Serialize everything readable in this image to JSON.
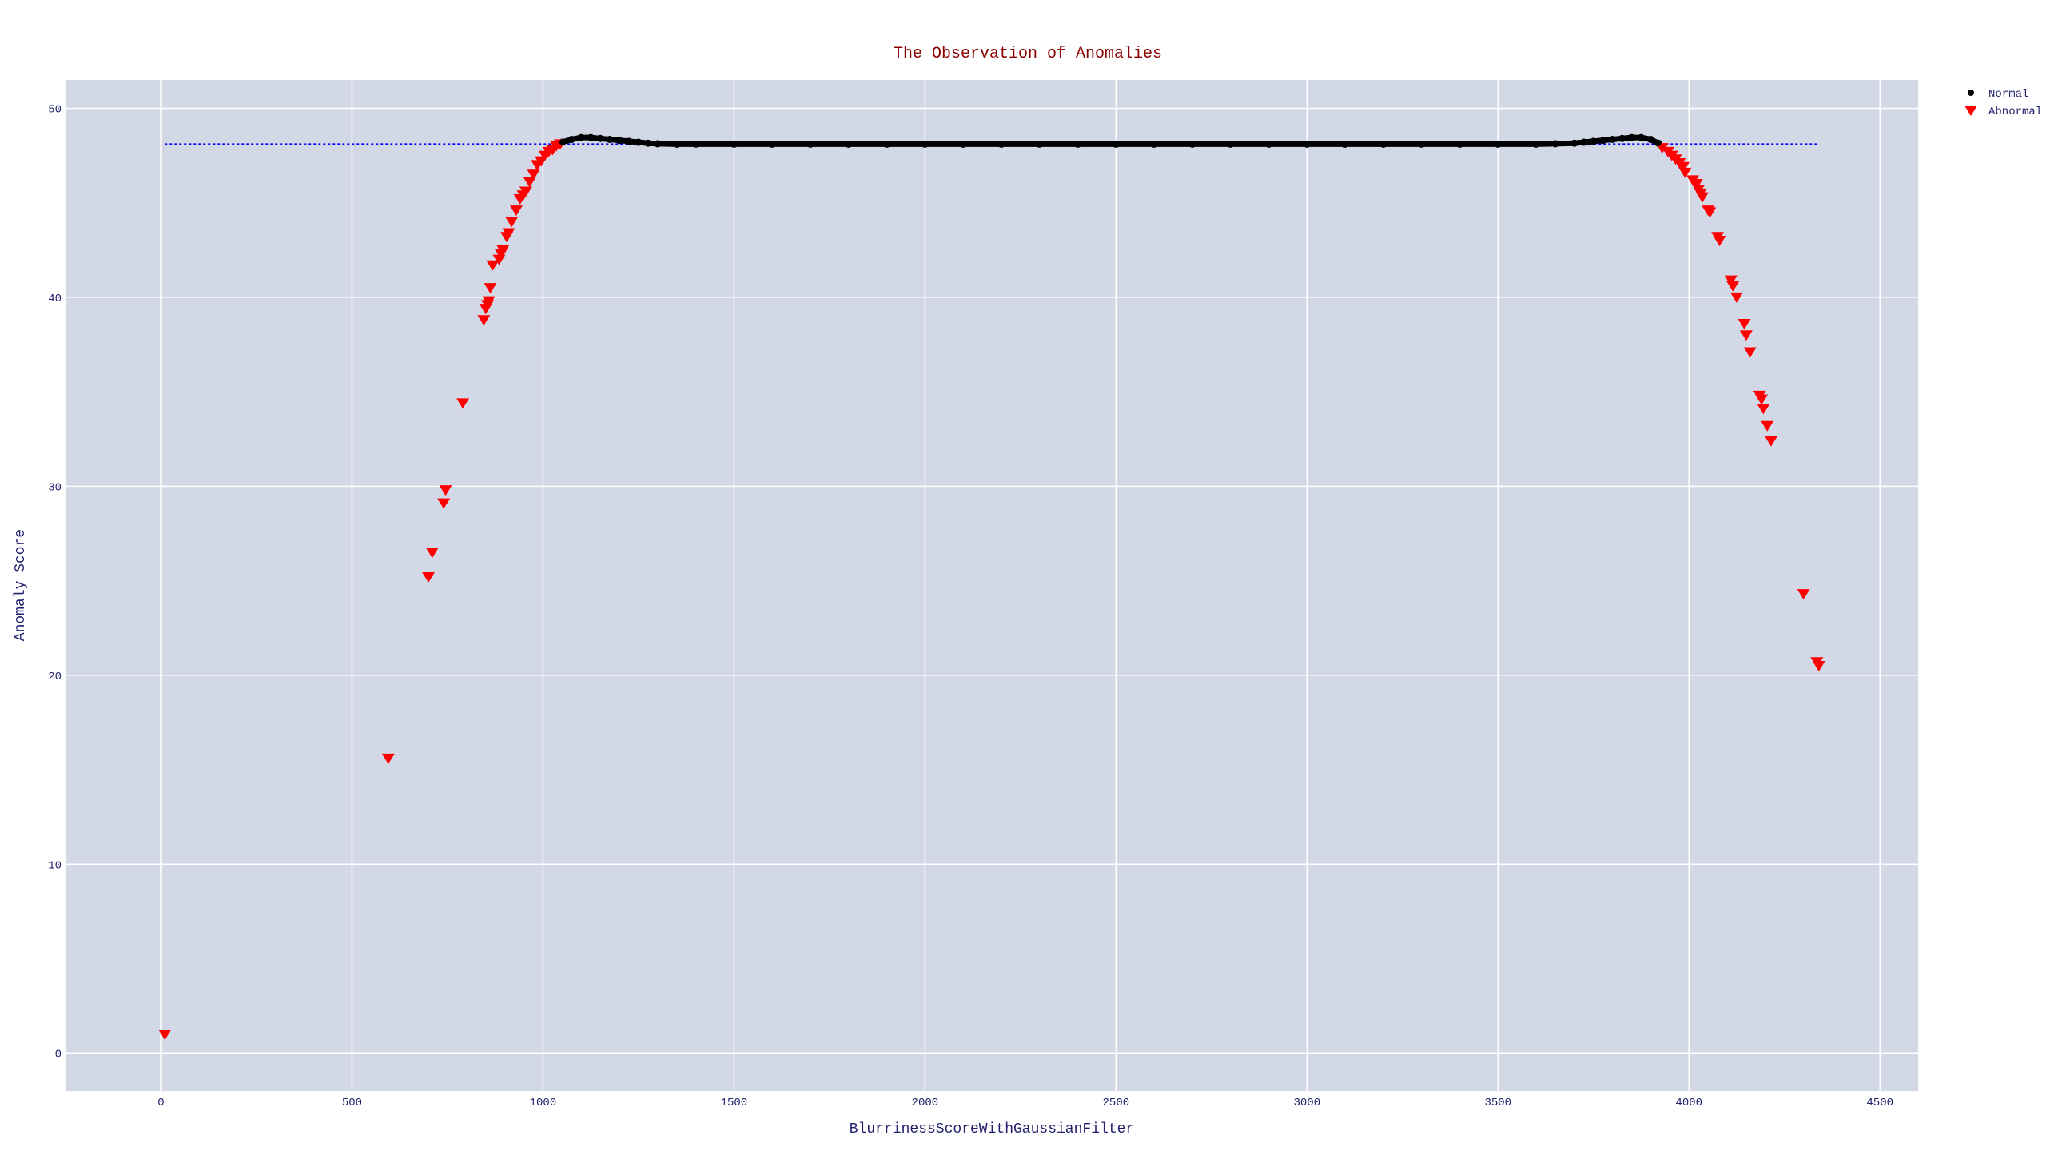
{
  "chart_data": {
    "type": "scatter",
    "title": "The Observation of Anomalies",
    "xlabel": "BlurrinessScoreWithGaussianFilter",
    "ylabel": "Anomaly Score",
    "xlim": [
      -250,
      4600
    ],
    "ylim": [
      -2,
      51.5
    ],
    "x_ticks": [
      0,
      500,
      1000,
      1500,
      2000,
      2500,
      3000,
      3500,
      4000,
      4500
    ],
    "y_ticks": [
      0,
      10,
      20,
      30,
      40,
      50
    ],
    "grid": true,
    "legend_position": "top-right",
    "reference_line": {
      "y": 48.1,
      "x_range": [
        10,
        4340
      ],
      "style": "dotted",
      "color": "#0000ff"
    },
    "series": [
      {
        "name": "Normal",
        "marker": "circle",
        "color": "#000000",
        "x": [
          1050,
          1075,
          1100,
          1125,
          1150,
          1175,
          1200,
          1225,
          1250,
          1275,
          1300,
          1350,
          1400,
          1500,
          1600,
          1700,
          1800,
          1900,
          2000,
          2100,
          2200,
          2300,
          2400,
          2500,
          2600,
          2700,
          2800,
          2900,
          3000,
          3100,
          3200,
          3300,
          3400,
          3500,
          3600,
          3650,
          3700,
          3725,
          3750,
          3775,
          3800,
          3825,
          3850,
          3875,
          3900,
          3920
        ],
        "y": [
          48.2,
          48.35,
          48.45,
          48.45,
          48.4,
          48.35,
          48.3,
          48.25,
          48.2,
          48.15,
          48.12,
          48.1,
          48.1,
          48.1,
          48.1,
          48.1,
          48.1,
          48.1,
          48.1,
          48.1,
          48.1,
          48.1,
          48.1,
          48.1,
          48.1,
          48.1,
          48.1,
          48.1,
          48.1,
          48.1,
          48.1,
          48.1,
          48.1,
          48.1,
          48.1,
          48.12,
          48.15,
          48.2,
          48.25,
          48.3,
          48.35,
          48.4,
          48.45,
          48.45,
          48.35,
          48.15
        ]
      },
      {
        "name": "Abnormal",
        "marker": "triangle-down",
        "color": "#ff0000",
        "x": [
          10,
          595,
          700,
          710,
          740,
          745,
          790,
          845,
          850,
          855,
          858,
          862,
          868,
          885,
          890,
          895,
          905,
          910,
          918,
          930,
          940,
          948,
          955,
          965,
          975,
          985,
          995,
          1005,
          1015,
          1025,
          1035,
          1045,
          3930,
          3945,
          3955,
          3965,
          3975,
          3985,
          3990,
          4010,
          4020,
          4025,
          4030,
          4035,
          4050,
          4055,
          4075,
          4080,
          4110,
          4115,
          4125,
          4145,
          4150,
          4160,
          4185,
          4190,
          4195,
          4205,
          4215,
          4300,
          4335,
          4340
        ],
        "y": [
          1.0,
          15.6,
          25.2,
          26.5,
          29.1,
          29.8,
          34.4,
          38.8,
          39.4,
          39.6,
          39.8,
          40.5,
          41.7,
          42.0,
          42.3,
          42.5,
          43.2,
          43.4,
          44.0,
          44.6,
          45.2,
          45.4,
          45.6,
          46.1,
          46.5,
          47.0,
          47.2,
          47.5,
          47.7,
          47.8,
          48.0,
          48.1,
          47.9,
          47.7,
          47.5,
          47.3,
          47.1,
          46.9,
          46.6,
          46.2,
          46.0,
          45.7,
          45.5,
          45.3,
          44.6,
          44.5,
          43.2,
          43.0,
          40.9,
          40.6,
          40.0,
          38.6,
          38.0,
          37.1,
          34.8,
          34.6,
          34.1,
          33.2,
          32.4,
          24.3,
          20.7,
          20.5
        ]
      }
    ]
  }
}
